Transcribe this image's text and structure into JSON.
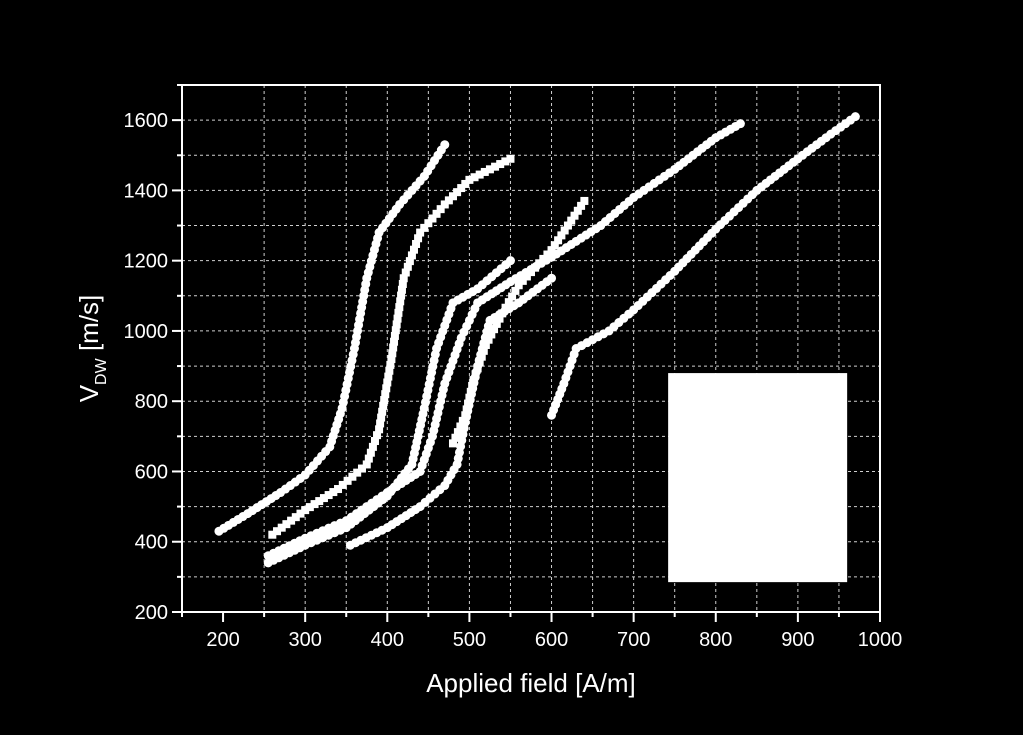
{
  "chart_data": {
    "type": "scatter",
    "xlabel": "Applied field [A/m]",
    "ylabel": {
      "main": "V",
      "sub": "DW",
      "rest": " [m/s]"
    },
    "xlim": [
      150,
      1000
    ],
    "ylim": [
      200,
      1700
    ],
    "xticks": [
      200,
      300,
      400,
      500,
      600,
      700,
      800,
      900,
      1000
    ],
    "yticks": [
      200,
      400,
      600,
      800,
      1000,
      1200,
      1400,
      1600
    ],
    "grid": true,
    "legend_placement": "bottom-right (blank box)",
    "colors": {
      "background": "#000000",
      "foreground": "#ffffff",
      "legend_box": "#ffffff"
    },
    "series": [
      {
        "marker": "circle",
        "points": [
          [
            195,
            430
          ],
          [
            230,
            480
          ],
          [
            270,
            540
          ],
          [
            300,
            590
          ],
          [
            330,
            670
          ],
          [
            345,
            780
          ],
          [
            360,
            950
          ],
          [
            375,
            1150
          ],
          [
            390,
            1280
          ],
          [
            415,
            1360
          ],
          [
            445,
            1440
          ],
          [
            470,
            1530
          ]
        ]
      },
      {
        "marker": "square",
        "points": [
          [
            260,
            420
          ],
          [
            300,
            490
          ],
          [
            340,
            550
          ],
          [
            375,
            620
          ],
          [
            390,
            720
          ],
          [
            405,
            920
          ],
          [
            420,
            1150
          ],
          [
            440,
            1280
          ],
          [
            470,
            1360
          ],
          [
            500,
            1430
          ],
          [
            550,
            1490
          ]
        ]
      },
      {
        "marker": "circle",
        "points": [
          [
            255,
            340
          ],
          [
            300,
            390
          ],
          [
            350,
            440
          ],
          [
            400,
            530
          ],
          [
            430,
            620
          ],
          [
            445,
            780
          ],
          [
            460,
            950
          ],
          [
            480,
            1080
          ],
          [
            510,
            1120
          ],
          [
            550,
            1200
          ]
        ]
      },
      {
        "marker": "circle",
        "points": [
          [
            255,
            360
          ],
          [
            300,
            410
          ],
          [
            350,
            460
          ],
          [
            400,
            540
          ],
          [
            440,
            600
          ],
          [
            455,
            700
          ],
          [
            470,
            850
          ],
          [
            490,
            980
          ],
          [
            510,
            1080
          ],
          [
            550,
            1140
          ],
          [
            600,
            1210
          ],
          [
            660,
            1300
          ],
          [
            700,
            1380
          ],
          [
            750,
            1460
          ],
          [
            800,
            1550
          ],
          [
            830,
            1590
          ]
        ]
      },
      {
        "marker": "square",
        "points": [
          [
            480,
            680
          ],
          [
            495,
            760
          ],
          [
            505,
            860
          ],
          [
            520,
            960
          ],
          [
            540,
            1050
          ],
          [
            560,
            1130
          ],
          [
            600,
            1230
          ],
          [
            640,
            1370
          ]
        ]
      },
      {
        "marker": "circle",
        "points": [
          [
            355,
            390
          ],
          [
            400,
            440
          ],
          [
            440,
            500
          ],
          [
            470,
            560
          ],
          [
            485,
            620
          ],
          [
            495,
            740
          ],
          [
            510,
            900
          ],
          [
            525,
            1030
          ],
          [
            560,
            1080
          ],
          [
            600,
            1150
          ]
        ]
      },
      {
        "marker": "circle",
        "points": [
          [
            600,
            760
          ],
          [
            615,
            850
          ],
          [
            630,
            950
          ],
          [
            670,
            1000
          ],
          [
            700,
            1060
          ],
          [
            750,
            1170
          ],
          [
            800,
            1290
          ],
          [
            850,
            1400
          ],
          [
            900,
            1490
          ],
          [
            940,
            1560
          ],
          [
            970,
            1610
          ]
        ]
      }
    ]
  }
}
